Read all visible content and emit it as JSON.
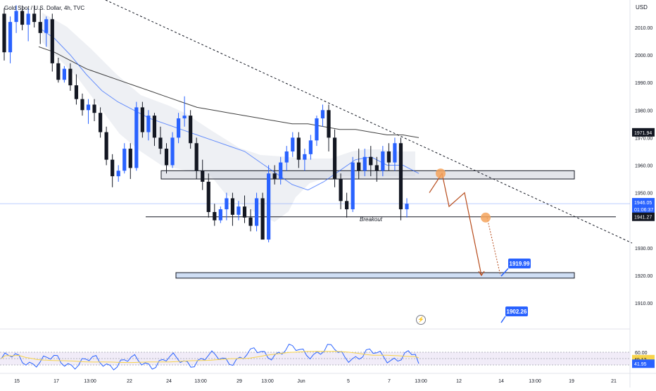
{
  "header": {
    "symbol_text": "Gold Spot / U.S. Dollar",
    "interval": "4h",
    "source": "TVC"
  },
  "price_axis": {
    "currency": "USD",
    "ticks": [
      "2010.00",
      "2000.00",
      "1990.00",
      "1980.00",
      "1970.00",
      "1960.00",
      "1950.00",
      "1930.00",
      "1920.00",
      "1910.00"
    ]
  },
  "price_labels": {
    "sma_value": "1971.94",
    "current_price": "1946.05",
    "countdown": "01:06:37",
    "support_value": "1941.27"
  },
  "annotations": {
    "breakout": "Breakout",
    "target1": "1919.99",
    "target2": "1902.26"
  },
  "rsi_axis": {
    "ticks": [
      "60.00",
      "49.12",
      "41.95"
    ]
  },
  "time_axis": {
    "ticks": [
      "15",
      "17",
      "13:00",
      "22",
      "24",
      "13:00",
      "29",
      "13:00",
      "Jun",
      "5",
      "7",
      "13:00",
      "12",
      "14",
      "13:00",
      "19",
      "21"
    ]
  },
  "colors": {
    "up": "#2962ff",
    "down": "#131722",
    "sma": "#000000",
    "ema": "#2962ff",
    "cloud": "#e0e3eb",
    "projection": "#b74b1b",
    "circle": "#f5a35c",
    "label_bg": "#2962ff",
    "rsi_band": "#ede7f6",
    "rsi_line": "#2962ff",
    "rsi_signal": "#f7d44c"
  },
  "chart_data": {
    "type": "candlestick",
    "symbol": "Gold Spot / U.S. Dollar",
    "interval": "4h",
    "ylim": [
      1904,
      2018
    ],
    "candles_ohlc": [
      [
        2015,
        2017,
        1998,
        2001
      ],
      [
        2001,
        2014,
        1997,
        2012
      ],
      [
        2012,
        2018,
        2008,
        2016
      ],
      [
        2016,
        2018,
        2009,
        2011
      ],
      [
        2011,
        2017,
        2005,
        2015
      ],
      [
        2015,
        2018,
        2010,
        2012
      ],
      [
        2012,
        2017,
        2004,
        2008
      ],
      [
        2008,
        2014,
        2003,
        2013
      ],
      [
        2013,
        2015,
        1994,
        1997
      ],
      [
        1997,
        1999,
        1990,
        1991
      ],
      [
        1991,
        1996,
        1990,
        1995
      ],
      [
        1995,
        1997,
        1987,
        1989
      ],
      [
        1989,
        1993,
        1982,
        1984
      ],
      [
        1984,
        1986,
        1978,
        1980
      ],
      [
        1980,
        1984,
        1975,
        1982
      ],
      [
        1982,
        1984,
        1976,
        1979
      ],
      [
        1979,
        1981,
        1970,
        1972
      ],
      [
        1972,
        1974,
        1960,
        1962
      ],
      [
        1962,
        1964,
        1952,
        1956
      ],
      [
        1956,
        1960,
        1954,
        1958
      ],
      [
        1958,
        1968,
        1957,
        1966
      ],
      [
        1966,
        1968,
        1955,
        1959
      ],
      [
        1959,
        1983,
        1958,
        1981
      ],
      [
        1981,
        1983,
        1970,
        1972
      ],
      [
        1972,
        1980,
        1969,
        1978
      ],
      [
        1978,
        1979,
        1967,
        1970
      ],
      [
        1970,
        1974,
        1964,
        1966
      ],
      [
        1966,
        1968,
        1957,
        1960
      ],
      [
        1960,
        1972,
        1959,
        1970
      ],
      [
        1970,
        1979,
        1968,
        1977
      ],
      [
        1977,
        1985,
        1974,
        1978
      ],
      [
        1978,
        1980,
        1966,
        1968
      ],
      [
        1968,
        1970,
        1955,
        1958
      ],
      [
        1958,
        1962,
        1951,
        1954
      ],
      [
        1954,
        1957,
        1941,
        1943
      ],
      [
        1943,
        1946,
        1938,
        1940
      ],
      [
        1940,
        1945,
        1939,
        1944
      ],
      [
        1944,
        1950,
        1940,
        1948
      ],
      [
        1948,
        1950,
        1938,
        1942
      ],
      [
        1942,
        1947,
        1940,
        1945
      ],
      [
        1945,
        1949,
        1939,
        1941
      ],
      [
        1941,
        1944,
        1936,
        1938
      ],
      [
        1938,
        1950,
        1936,
        1948
      ],
      [
        1948,
        1950,
        1935,
        1933
      ],
      [
        1933,
        1960,
        1932,
        1957
      ],
      [
        1957,
        1960,
        1953,
        1955
      ],
      [
        1955,
        1963,
        1953,
        1961
      ],
      [
        1961,
        1967,
        1958,
        1965
      ],
      [
        1965,
        1972,
        1963,
        1970
      ],
      [
        1970,
        1972,
        1959,
        1962
      ],
      [
        1962,
        1966,
        1958,
        1964
      ],
      [
        1964,
        1971,
        1962,
        1969
      ],
      [
        1969,
        1978,
        1967,
        1977
      ],
      [
        1977,
        1982,
        1974,
        1980
      ],
      [
        1980,
        1982,
        1965,
        1970
      ],
      [
        1970,
        1973,
        1952,
        1955
      ],
      [
        1955,
        1957,
        1944,
        1947
      ],
      [
        1947,
        1950,
        1941,
        1944
      ],
      [
        1944,
        1963,
        1943,
        1961
      ],
      [
        1961,
        1966,
        1955,
        1958
      ],
      [
        1958,
        1966,
        1956,
        1963
      ],
      [
        1963,
        1967,
        1956,
        1960
      ],
      [
        1960,
        1963,
        1954,
        1958
      ],
      [
        1958,
        1967,
        1956,
        1965
      ],
      [
        1965,
        1968,
        1958,
        1961
      ],
      [
        1961,
        1970,
        1958,
        1968
      ],
      [
        1968,
        1970,
        1940,
        1944
      ],
      [
        1944,
        1948,
        1941,
        1946
      ]
    ],
    "sma_series": [
      2003,
      2001,
      1998,
      1995,
      1993,
      1991,
      1989,
      1987,
      1985,
      1983,
      1981,
      1980,
      1979,
      1978,
      1977,
      1976,
      1975,
      1975,
      1974,
      1973,
      1973,
      1972,
      1971,
      1971,
      1970
    ],
    "ema_series": [
      2010,
      2006,
      2000,
      1993,
      1987,
      1983,
      1980,
      1977,
      1975,
      1973,
      1971,
      1969,
      1967,
      1965,
      1961,
      1957,
      1953,
      1951,
      1954,
      1958,
      1962,
      1963,
      1960,
      1960,
      1957
    ],
    "levels": {
      "resistance_zone": [
        1955,
        1958
      ],
      "breakout_line": 1941.27,
      "target_zone": [
        1919,
        1921
      ],
      "targets": [
        1919.99,
        1902.26
      ],
      "current_price": 1946.05,
      "sma_value": 1971.94
    },
    "projection_path": [
      1950,
      1957,
      1945,
      1950,
      1920
    ],
    "rsi": {
      "band": [
        40,
        60
      ],
      "last": 41.95,
      "signal_last": 49.12
    },
    "x_tick_labels": [
      "15",
      "17",
      "13:00",
      "22",
      "24",
      "13:00",
      "29",
      "13:00",
      "Jun",
      "5",
      "7",
      "13:00",
      "12",
      "14",
      "13:00",
      "19",
      "21"
    ]
  }
}
